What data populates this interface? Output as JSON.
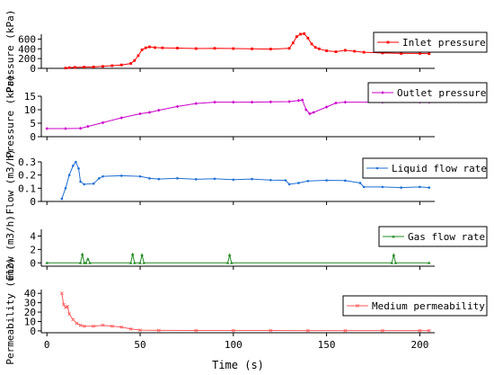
{
  "chart_data": {
    "type": "line",
    "xlabel": "Time (s)",
    "xlim": [
      -3,
      208
    ],
    "xticks": [
      0,
      50,
      100,
      150,
      200
    ],
    "panels": [
      {
        "ylabel": "Pressure (kPa)",
        "ylim": [
          0,
          700
        ],
        "yticks": [
          0,
          200,
          400,
          600
        ],
        "legend_position": "top-right",
        "series": [
          {
            "name": "Inlet pressure",
            "color": "#ff0000",
            "marker": "square",
            "points": [
              [
                10,
                5
              ],
              [
                12,
                15
              ],
              [
                15,
                20
              ],
              [
                20,
                25
              ],
              [
                25,
                30
              ],
              [
                30,
                40
              ],
              [
                35,
                55
              ],
              [
                40,
                70
              ],
              [
                45,
                100
              ],
              [
                47,
                160
              ],
              [
                49,
                260
              ],
              [
                51,
                380
              ],
              [
                53,
                420
              ],
              [
                55,
                440
              ],
              [
                58,
                425
              ],
              [
                62,
                420
              ],
              [
                70,
                415
              ],
              [
                80,
                405
              ],
              [
                90,
                410
              ],
              [
                100,
                405
              ],
              [
                110,
                400
              ],
              [
                120,
                395
              ],
              [
                130,
                410
              ],
              [
                132,
                520
              ],
              [
                134,
                650
              ],
              [
                136,
                700
              ],
              [
                138,
                710
              ],
              [
                140,
                620
              ],
              [
                142,
                500
              ],
              [
                144,
                430
              ],
              [
                146,
                400
              ],
              [
                150,
                360
              ],
              [
                155,
                340
              ],
              [
                160,
                370
              ],
              [
                165,
                350
              ],
              [
                170,
                330
              ],
              [
                180,
                315
              ],
              [
                190,
                305
              ],
              [
                200,
                305
              ],
              [
                205,
                300
              ]
            ]
          }
        ]
      },
      {
        "ylabel": "Pressure (kPa)",
        "ylim": [
          0,
          15
        ],
        "yticks": [
          0,
          5,
          10,
          15
        ],
        "legend_position": "top-right",
        "series": [
          {
            "name": "Outlet pressure",
            "color": "#cc00cc",
            "marker": "diamond",
            "points": [
              [
                0,
                3
              ],
              [
                10,
                3
              ],
              [
                18,
                3.1
              ],
              [
                22,
                3.8
              ],
              [
                30,
                5.2
              ],
              [
                40,
                7
              ],
              [
                50,
                8.5
              ],
              [
                55,
                9
              ],
              [
                60,
                9.8
              ],
              [
                70,
                11.2
              ],
              [
                80,
                12.3
              ],
              [
                90,
                12.8
              ],
              [
                100,
                12.8
              ],
              [
                110,
                12.8
              ],
              [
                120,
                12.9
              ],
              [
                130,
                13
              ],
              [
                135,
                13.4
              ],
              [
                137,
                13.6
              ],
              [
                139,
                10
              ],
              [
                141,
                8.5
              ],
              [
                143,
                9
              ],
              [
                150,
                11
              ],
              [
                155,
                12.5
              ],
              [
                160,
                12.8
              ],
              [
                180,
                12.8
              ],
              [
                200,
                12.8
              ],
              [
                205,
                12.8
              ]
            ]
          }
        ]
      },
      {
        "ylabel": "Flow (m3/h)",
        "ylim": [
          0,
          0.3
        ],
        "yticks": [
          0,
          0.1,
          0.2,
          0.3
        ],
        "legend_position": "top-right",
        "series": [
          {
            "name": "Liquid flow rate",
            "color": "#1f6fd6",
            "marker": "circle",
            "points": [
              [
                8,
                0.02
              ],
              [
                10,
                0.1
              ],
              [
                12,
                0.2
              ],
              [
                14,
                0.27
              ],
              [
                15.5,
                0.3
              ],
              [
                17,
                0.25
              ],
              [
                18,
                0.15
              ],
              [
                20,
                0.13
              ],
              [
                25,
                0.135
              ],
              [
                28,
                0.175
              ],
              [
                30,
                0.19
              ],
              [
                40,
                0.195
              ],
              [
                50,
                0.19
              ],
              [
                55,
                0.175
              ],
              [
                60,
                0.17
              ],
              [
                70,
                0.175
              ],
              [
                80,
                0.168
              ],
              [
                90,
                0.172
              ],
              [
                100,
                0.165
              ],
              [
                110,
                0.17
              ],
              [
                120,
                0.162
              ],
              [
                128,
                0.16
              ],
              [
                130,
                0.13
              ],
              [
                135,
                0.14
              ],
              [
                140,
                0.155
              ],
              [
                150,
                0.16
              ],
              [
                160,
                0.158
              ],
              [
                168,
                0.14
              ],
              [
                170,
                0.11
              ],
              [
                180,
                0.11
              ],
              [
                190,
                0.105
              ],
              [
                200,
                0.11
              ],
              [
                205,
                0.105
              ]
            ]
          }
        ]
      },
      {
        "ylabel": "Flow (m3/h)",
        "ylim": [
          -0.5,
          5
        ],
        "yticks": [
          0,
          2,
          4
        ],
        "legend_position": "top-right",
        "series": [
          {
            "name": "Gas flow rate",
            "color": "#228b22",
            "marker": "triangle",
            "points": [
              [
                0,
                0
              ],
              [
                18,
                0
              ],
              [
                19,
                1.3
              ],
              [
                20,
                0
              ],
              [
                21,
                0
              ],
              [
                22,
                0.6
              ],
              [
                23,
                0
              ],
              [
                45,
                0
              ],
              [
                46,
                1.3
              ],
              [
                47,
                0
              ],
              [
                50,
                0
              ],
              [
                51,
                1.2
              ],
              [
                52,
                0
              ],
              [
                97,
                0
              ],
              [
                98,
                1.2
              ],
              [
                99,
                0
              ],
              [
                185,
                0
              ],
              [
                186,
                1.2
              ],
              [
                187,
                0
              ],
              [
                205,
                0
              ]
            ]
          }
        ]
      },
      {
        "ylabel": "Permeability (um2)",
        "ylim": [
          -2,
          44
        ],
        "yticks": [
          0,
          10,
          20,
          30,
          40
        ],
        "legend_position": "top-right",
        "series": [
          {
            "name": "Medium permeability",
            "color": "#ff5555",
            "marker": "cross",
            "points": [
              [
                8,
                40
              ],
              [
                9,
                28
              ],
              [
                10,
                25
              ],
              [
                11,
                26
              ],
              [
                12,
                18
              ],
              [
                14,
                12
              ],
              [
                16,
                8
              ],
              [
                18,
                6
              ],
              [
                20,
                5
              ],
              [
                25,
                5
              ],
              [
                30,
                6
              ],
              [
                35,
                5
              ],
              [
                40,
                4
              ],
              [
                45,
                2
              ],
              [
                50,
                0.8
              ],
              [
                60,
                0.5
              ],
              [
                80,
                0.4
              ],
              [
                100,
                0.4
              ],
              [
                120,
                0.35
              ],
              [
                140,
                0.3
              ],
              [
                160,
                0.3
              ],
              [
                180,
                0.3
              ],
              [
                200,
                0.3
              ],
              [
                205,
                0.3
              ]
            ]
          }
        ]
      }
    ]
  }
}
